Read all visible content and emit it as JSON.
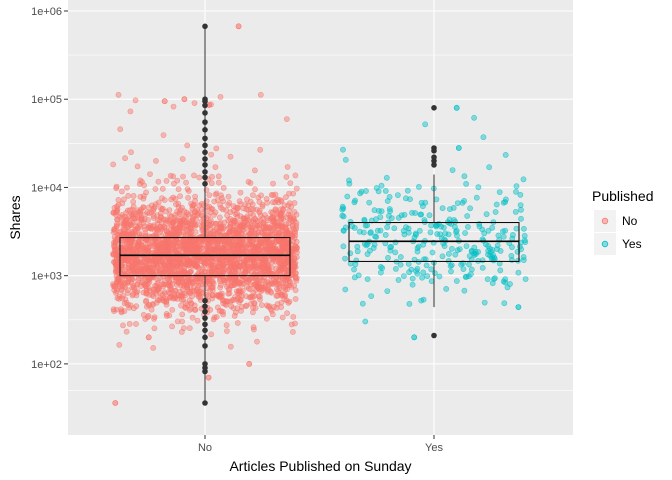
{
  "chart_data": {
    "type": "scatter",
    "subtype": "jitter-with-boxplot",
    "xlabel": "Articles Published on Sunday",
    "ylabel": "Shares",
    "y_scale": "log10",
    "ylim": [
      25,
      1000000
    ],
    "categories": [
      "No",
      "Yes"
    ],
    "y_ticks": [
      {
        "value": 100,
        "label": "1e+02"
      },
      {
        "value": 1000,
        "label": "1e+03"
      },
      {
        "value": 10000,
        "label": "1e+04"
      },
      {
        "value": 100000,
        "label": "1e+05"
      },
      {
        "value": 1000000,
        "label": "1e+06"
      }
    ],
    "legend": {
      "title": "Published",
      "position": "right",
      "entries": [
        {
          "label": "No",
          "color": "#F8766D"
        },
        {
          "label": "Yes",
          "color": "#00BFC4"
        }
      ]
    },
    "series": [
      {
        "category": "No",
        "color": "#F8766D",
        "n_points_approx": 2700,
        "box": {
          "min": 36,
          "q1": 1000,
          "median": 1700,
          "q3": 2700,
          "max": 670000
        },
        "outliers": [
          36,
          82,
          90,
          100,
          160,
          200,
          240,
          280,
          330,
          390,
          450,
          520,
          11000,
          13000,
          15000,
          18000,
          21000,
          25000,
          30000,
          36000,
          45000,
          55000,
          70000,
          85000,
          95000,
          100000,
          670000
        ],
        "notable_points": [
          36,
          70,
          100,
          200,
          100000,
          95000,
          86000,
          670000
        ]
      },
      {
        "category": "Yes",
        "color": "#00BFC4",
        "n_points_approx": 320,
        "box": {
          "min": 440,
          "q1": 1450,
          "median": 2450,
          "q3": 4000,
          "max": 14000
        },
        "outliers": [
          210,
          18000,
          20000,
          22000,
          26000,
          28000,
          80000
        ],
        "notable_points": [
          200,
          440,
          28000,
          80000
        ]
      }
    ]
  }
}
